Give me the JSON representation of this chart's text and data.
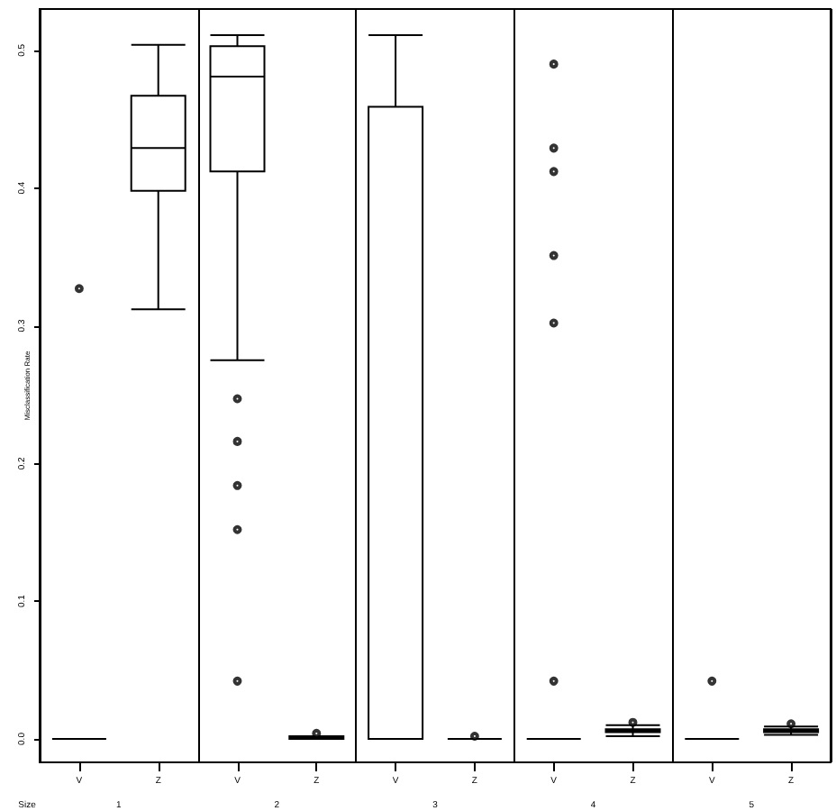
{
  "chart_data": {
    "type": "box",
    "ylabel": "Misclassification Rate",
    "categories": [
      "V",
      "Z",
      "V",
      "Z",
      "V",
      "Z",
      "V",
      "Z",
      "V",
      "Z"
    ],
    "annotations": [
      "Size",
      "1",
      "2",
      "3",
      "4",
      "5"
    ],
    "ylim": [
      -0.017,
      0.53
    ],
    "yticks": [
      {
        "value": 0,
        "label": "0.0"
      },
      {
        "value": 0.1,
        "label": "0.1"
      },
      {
        "value": 0.2,
        "label": "0.2"
      },
      {
        "value": 0.3,
        "label": "0.3"
      },
      {
        "value": 0.4,
        "label": "0.4"
      },
      {
        "value": 0.5,
        "label": "0.5"
      }
    ],
    "grid": false,
    "series": [
      {
        "color": "#000000",
        "boxes": [
          {
            "low": 0,
            "q1": 0,
            "median": 0,
            "q3": 0,
            "high": 0,
            "outliers": [
              0.327
            ]
          },
          {
            "low": 0.312,
            "q1": 0.398,
            "median": 0.429,
            "q3": 0.467,
            "high": 0.504
          },
          {
            "low": 0.275,
            "q1": 0.412,
            "median": 0.481,
            "q3": 0.503,
            "high": 0.511,
            "outliers": [
              0.247,
              0.216,
              0.184,
              0.152,
              0.042
            ]
          },
          {
            "low": 0,
            "q1": 0,
            "median": 0.001,
            "q3": 0.002,
            "high": 0.002,
            "outliers": [
              0.004
            ]
          },
          {
            "low": 0,
            "q1": 0,
            "median": 0,
            "q3": 0.459,
            "high": 0.511
          },
          {
            "low": 0,
            "q1": 0,
            "median": 0,
            "q3": 0,
            "high": 0,
            "outliers": [
              0.002
            ]
          },
          {
            "low": 0,
            "q1": 0,
            "median": 0,
            "q3": 0,
            "high": 0,
            "outliers": [
              0.49,
              0.429,
              0.412,
              0.351,
              0.302,
              0.042
            ]
          },
          {
            "low": 0.002,
            "q1": 0.005,
            "median": 0.006,
            "q3": 0.007,
            "high": 0.01,
            "outliers": [
              0.012
            ]
          },
          {
            "low": 0,
            "q1": 0,
            "median": 0,
            "q3": 0,
            "high": 0,
            "outliers": [
              0.042
            ]
          },
          {
            "low": 0.003,
            "q1": 0.005,
            "median": 0.006,
            "q3": 0.007,
            "high": 0.009,
            "outliers": [
              0.011
            ]
          }
        ]
      }
    ]
  }
}
